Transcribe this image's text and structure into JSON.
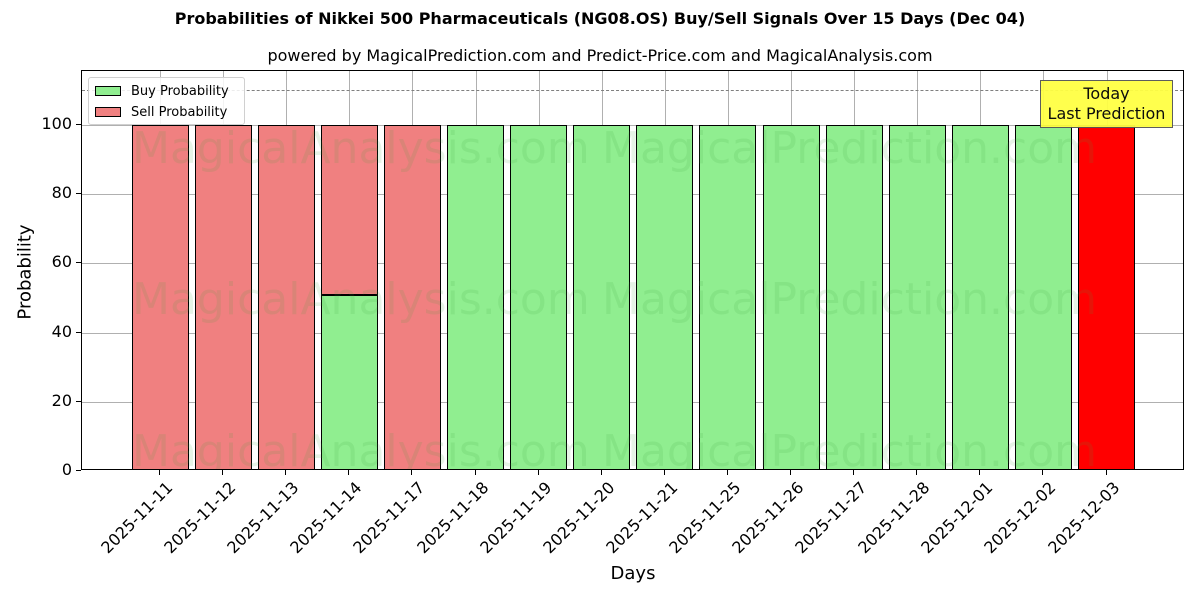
{
  "header": {
    "title": "Probabilities of Nikkei 500 Pharmaceuticals (NG08.OS) Buy/Sell Signals Over 15 Days (Dec 04)",
    "subtitle": "powered by MagicalPrediction.com and Predict-Price.com and MagicalAnalysis.com"
  },
  "axes": {
    "xlabel": "Days",
    "ylabel": "Probability",
    "yticks": [
      "0",
      "20",
      "40",
      "60",
      "80",
      "100"
    ]
  },
  "legend": {
    "buy_label": "Buy Probability",
    "sell_label": "Sell Probability"
  },
  "annotation": {
    "line1": "Today",
    "line2": "Last Prediction"
  },
  "watermarks": [
    "MagicalAnalysis.com",
    "MagicalPrediction.com"
  ],
  "colors": {
    "buy": "#90ee90",
    "sell": "#f08080",
    "today_sell": "#ff0000",
    "annotation_bg": "#ffff44",
    "refline": "#7f7f7f"
  },
  "chart_data": {
    "type": "bar",
    "stacked": true,
    "title": "Probabilities of Nikkei 500 Pharmaceuticals (NG08.OS) Buy/Sell Signals Over 15 Days (Dec 04)",
    "subtitle": "powered by MagicalPrediction.com and Predict-Price.com and MagicalAnalysis.com",
    "xlabel": "Days",
    "ylabel": "Probability",
    "ylim": [
      0,
      115
    ],
    "yticks": [
      0,
      20,
      40,
      60,
      80,
      100
    ],
    "grid": true,
    "legend_position": "upper left",
    "reference_line": {
      "y": 110,
      "style": "dashed"
    },
    "categories": [
      "2025-11-11",
      "2025-11-12",
      "2025-11-13",
      "2025-11-14",
      "2025-11-17",
      "2025-11-18",
      "2025-11-19",
      "2025-11-20",
      "2025-11-21",
      "2025-11-25",
      "2025-11-26",
      "2025-11-27",
      "2025-11-28",
      "2025-12-01",
      "2025-12-02",
      "2025-12-03"
    ],
    "series": [
      {
        "name": "Buy Probability",
        "color": "#90ee90",
        "values": [
          0,
          0,
          0,
          51,
          0,
          100,
          100,
          100,
          100,
          100,
          100,
          100,
          100,
          100,
          100,
          0
        ]
      },
      {
        "name": "Sell Probability",
        "color": "#f08080",
        "values": [
          100,
          100,
          100,
          49,
          100,
          0,
          0,
          0,
          0,
          0,
          0,
          0,
          0,
          0,
          0,
          100
        ]
      }
    ],
    "annotations": [
      {
        "text": "Today\nLast Prediction",
        "x": "2025-12-03",
        "y": 110
      }
    ],
    "highlight": {
      "category": "2025-12-03",
      "color": "#ff0000"
    }
  }
}
